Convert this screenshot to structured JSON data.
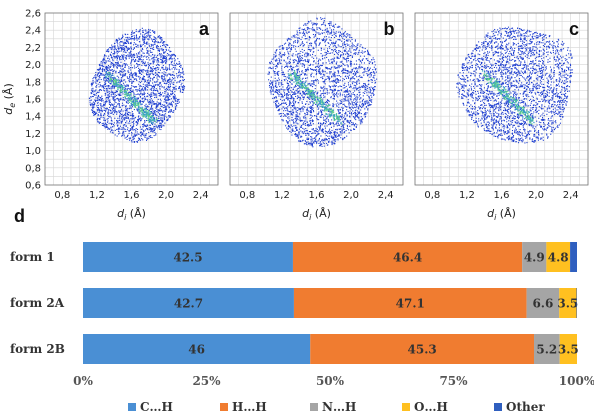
{
  "chart_data": [
    {
      "type": "scatter",
      "panel_label": "a",
      "xlabel": "d",
      "xlabel_sub": "i",
      "xlabel_unit": "(Å)",
      "ylabel": "d",
      "ylabel_sub": "e",
      "ylabel_unit": "(Å)",
      "xlim": [
        0.6,
        2.6
      ],
      "ylim": [
        0.6,
        2.6
      ],
      "x_ticks": [
        "0,8",
        "1,2",
        "1,6",
        "2,0",
        "2,4"
      ],
      "y_ticks": [
        "0,6",
        "0,8",
        "1,0",
        "1,2",
        "1,4",
        "1,6",
        "1,8",
        "2,0",
        "2,2",
        "2,4",
        "2,6"
      ],
      "grid": true,
      "color": "#1f3fd0",
      "highlight_colors": [
        "#3aa0c8",
        "#5cd08a"
      ]
    },
    {
      "type": "scatter",
      "panel_label": "b",
      "xlabel": "d",
      "xlabel_sub": "i",
      "xlabel_unit": "(Å)",
      "xlim": [
        0.6,
        2.6
      ],
      "ylim": [
        0.6,
        2.6
      ],
      "x_ticks": [
        "0,8",
        "1,2",
        "1,6",
        "2,0",
        "2,4"
      ],
      "grid": true,
      "color": "#1f3fd0",
      "highlight_colors": [
        "#3aa0c8",
        "#5cd08a"
      ]
    },
    {
      "type": "scatter",
      "panel_label": "c",
      "xlabel": "d",
      "xlabel_sub": "i",
      "xlabel_unit": "(Å)",
      "xlim": [
        0.6,
        2.6
      ],
      "ylim": [
        0.6,
        2.6
      ],
      "x_ticks": [
        "0,8",
        "1,2",
        "1,6",
        "2,0",
        "2,4"
      ],
      "grid": true,
      "color": "#1f3fd0",
      "highlight_colors": [
        "#3aa0c8",
        "#5cd08a"
      ]
    },
    {
      "type": "bar",
      "orientation": "horizontal",
      "stacked": true,
      "panel_label": "d",
      "categories": [
        "form 1",
        "form  2A",
        "form  2B"
      ],
      "series": [
        {
          "name": "C…H",
          "values": [
            42.5,
            42.7,
            46
          ],
          "color": "#4a8fd4"
        },
        {
          "name": "H…H",
          "values": [
            46.4,
            47.1,
            45.3
          ],
          "color": "#f07c30"
        },
        {
          "name": "N…H",
          "values": [
            4.9,
            6.6,
            5.2
          ],
          "color": "#a5a5a5"
        },
        {
          "name": "O…H",
          "values": [
            4.8,
            3.5,
            3.5
          ],
          "color": "#ffc020"
        },
        {
          "name": "Other",
          "values": [
            1.4,
            0.1,
            0.0
          ],
          "color": "#2f5fbf"
        }
      ],
      "segment_labels": [
        [
          "42.5",
          "46.4",
          "4.9",
          "4.8",
          ""
        ],
        [
          "42.7",
          "47.1",
          "6.6",
          "3.5",
          ""
        ],
        [
          "46",
          "45.3",
          "5.2",
          "3.5",
          ""
        ]
      ],
      "x_ticks": [
        "0%",
        "25%",
        "50%",
        "75%",
        "100%"
      ],
      "xlim": [
        0,
        100
      ],
      "legend_position": "bottom"
    }
  ]
}
